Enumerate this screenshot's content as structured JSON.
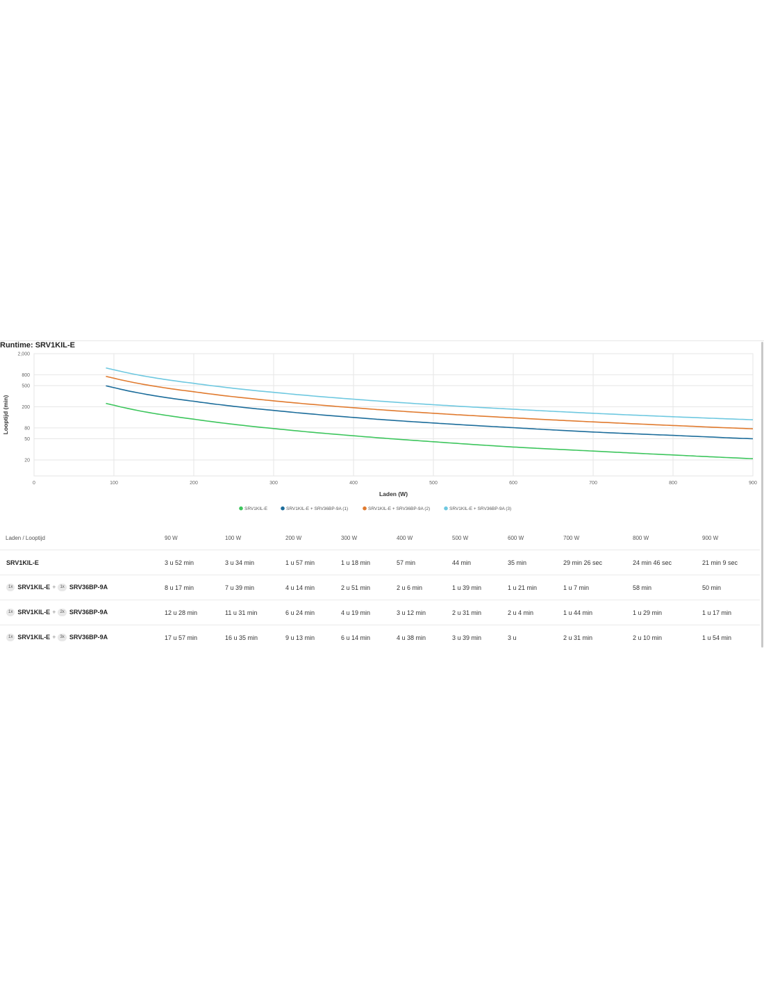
{
  "page_title": "Runtime: SRV1KIL-E",
  "colors": {
    "series": [
      "#3cc55c",
      "#1b6c9a",
      "#e07a2e",
      "#6ec8e0"
    ],
    "grid": "#e6e6e6",
    "axis_text": "#666666"
  },
  "chart_data": {
    "type": "line",
    "title": "Runtime: SRV1KIL-E",
    "xlabel": "Laden (W)",
    "ylabel": "Looptijd (min)",
    "x_scale": "linear",
    "y_scale": "log",
    "xlim": [
      0,
      900
    ],
    "ylim": [
      10,
      2000
    ],
    "x_ticks": [
      0,
      100,
      200,
      300,
      400,
      500,
      600,
      700,
      800,
      900
    ],
    "y_ticks": [
      20,
      50,
      80,
      200,
      500,
      800,
      2000
    ],
    "y_tick_labels": [
      "20",
      "50",
      "80",
      "200",
      "500",
      "800",
      "2,000"
    ],
    "grid": true,
    "legend_position": "bottom-center",
    "x": [
      90,
      100,
      200,
      300,
      400,
      500,
      600,
      700,
      800,
      900
    ],
    "series": [
      {
        "name": "SRV1KIL-E",
        "values": [
          232,
          214,
          117,
          78,
          57,
          44,
          35,
          29.4,
          24.8,
          21.1
        ]
      },
      {
        "name": "SRV1KIL-E + SRV36BP-9A (1)",
        "values": [
          497,
          459,
          254,
          171,
          126,
          99,
          81,
          67,
          58,
          50
        ]
      },
      {
        "name": "SRV1KIL-E + SRV36BP-9A (2)",
        "values": [
          748,
          691,
          384,
          259,
          192,
          151,
          124,
          104,
          89,
          77
        ]
      },
      {
        "name": "SRV1KIL-E + SRV36BP-9A (3)",
        "values": [
          1077,
          995,
          553,
          374,
          278,
          219,
          180,
          151,
          130,
          114
        ]
      }
    ]
  },
  "table": {
    "header_label": "Laden / Looptijd",
    "columns": [
      "90 W",
      "100 W",
      "200 W",
      "300 W",
      "400 W",
      "500 W",
      "600 W",
      "700 W",
      "800 W",
      "900 W"
    ],
    "plus": "+",
    "rows": [
      {
        "ups": "SRV1KIL-E",
        "values": [
          "3 u 52 min",
          "3 u 34 min",
          "1 u 57 min",
          "1 u 18 min",
          "57 min",
          "44 min",
          "35 min",
          "29 min 26 sec",
          "24 min 46 sec",
          "21 min 9 sec"
        ]
      },
      {
        "ups_qty": "1x",
        "ups": "SRV1KIL-E",
        "battery_qty": "1x",
        "battery": "SRV36BP-9A",
        "values": [
          "8 u 17 min",
          "7 u 39 min",
          "4 u 14 min",
          "2 u 51 min",
          "2 u 6 min",
          "1 u 39 min",
          "1 u 21 min",
          "1 u 7 min",
          "58 min",
          "50 min"
        ]
      },
      {
        "ups_qty": "1x",
        "ups": "SRV1KIL-E",
        "battery_qty": "2x",
        "battery": "SRV36BP-9A",
        "values": [
          "12 u 28 min",
          "11 u 31 min",
          "6 u 24 min",
          "4 u 19 min",
          "3 u 12 min",
          "2 u 31 min",
          "2 u 4 min",
          "1 u 44 min",
          "1 u 29 min",
          "1 u 17 min"
        ]
      },
      {
        "ups_qty": "1x",
        "ups": "SRV1KIL-E",
        "battery_qty": "3x",
        "battery": "SRV36BP-9A",
        "values": [
          "17 u 57 min",
          "16 u 35 min",
          "9 u 13 min",
          "6 u 14 min",
          "4 u 38 min",
          "3 u 39 min",
          "3 u",
          "2 u 31 min",
          "2 u 10 min",
          "1 u 54 min"
        ]
      }
    ]
  }
}
